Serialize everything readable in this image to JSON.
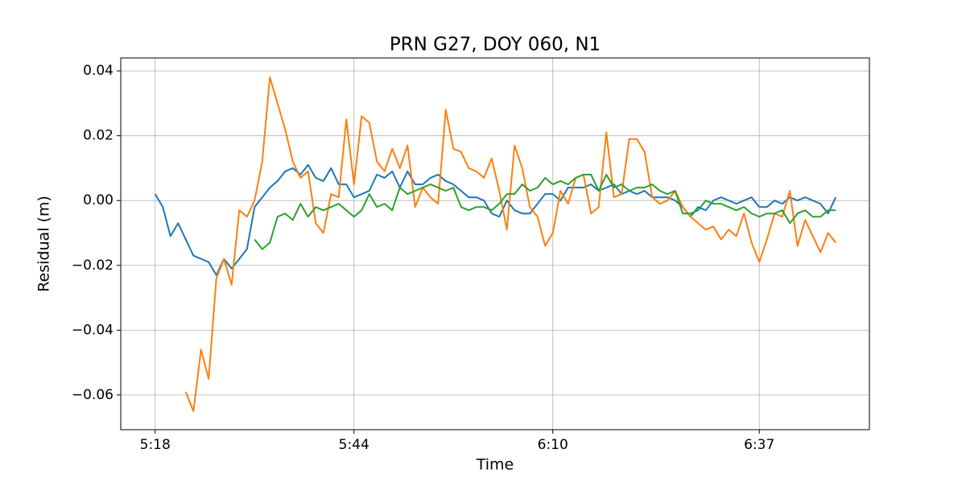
{
  "chart_data": {
    "type": "line",
    "title": "PRN G27, DOY 060, N1",
    "x_label": "Time",
    "y_label": "Residual (m)",
    "x": [
      318,
      319,
      320,
      321,
      322,
      323,
      324,
      325,
      326,
      327,
      328,
      329,
      330,
      331,
      332,
      333,
      334,
      335,
      336,
      337,
      338,
      339,
      340,
      341,
      342,
      343,
      344,
      345,
      346,
      347,
      348,
      349,
      350,
      351,
      352,
      353,
      354,
      355,
      356,
      357,
      358,
      359,
      360,
      361,
      362,
      363,
      364,
      365,
      366,
      367,
      368,
      369,
      370,
      371,
      372,
      373,
      374,
      375,
      376,
      377,
      378,
      379,
      380,
      381,
      382,
      383,
      384,
      385,
      386,
      387,
      388,
      389,
      390,
      391,
      392,
      393,
      394,
      395,
      396,
      397,
      398,
      399,
      400,
      401,
      402,
      403,
      404,
      405,
      406,
      407
    ],
    "series": [
      {
        "color": "#1f77b4",
        "values": [
          0.002,
          -0.002,
          -0.011,
          -0.007,
          -0.012,
          -0.017,
          -0.018,
          -0.019,
          -0.023,
          -0.018,
          -0.021,
          -0.018,
          -0.015,
          -0.002,
          0.001,
          0.004,
          0.006,
          0.009,
          0.01,
          0.008,
          0.011,
          0.007,
          0.006,
          0.01,
          0.005,
          0.005,
          0.001,
          0.002,
          0.003,
          0.008,
          0.007,
          0.009,
          0.004,
          0.009,
          0.005,
          0.005,
          0.007,
          0.008,
          0.006,
          0.005,
          0.003,
          0.001,
          0.001,
          0.0,
          -0.004,
          -0.005,
          0.0,
          -0.003,
          -0.004,
          -0.004,
          -0.001,
          0.002,
          0.002,
          0.0,
          0.004,
          0.004,
          0.004,
          0.005,
          0.003,
          0.004,
          0.005,
          0.002,
          0.003,
          0.002,
          0.003,
          0.001,
          0.001,
          0.001,
          0.0,
          -0.002,
          -0.005,
          -0.002,
          -0.003,
          0.0,
          0.001,
          0.0,
          -0.001,
          0.0,
          0.001,
          -0.002,
          -0.002,
          0.0,
          -0.001,
          0.001,
          0.0,
          0.001,
          0.0,
          -0.001,
          -0.004,
          0.001
        ]
      },
      {
        "color": "#ff7f0e",
        "values": [
          null,
          null,
          null,
          null,
          -0.059,
          -0.065,
          -0.046,
          -0.055,
          -0.024,
          -0.018,
          -0.026,
          -0.003,
          -0.005,
          0.0,
          0.012,
          0.038,
          0.03,
          0.022,
          0.012,
          0.007,
          0.009,
          -0.007,
          -0.01,
          0.002,
          0.001,
          0.025,
          0.005,
          0.026,
          0.024,
          0.012,
          0.009,
          0.016,
          0.01,
          0.017,
          -0.002,
          0.004,
          0.001,
          -0.001,
          0.028,
          0.016,
          0.015,
          0.01,
          0.009,
          0.007,
          0.013,
          0.003,
          -0.009,
          0.017,
          0.01,
          -0.002,
          -0.005,
          -0.014,
          -0.01,
          0.003,
          -0.001,
          0.007,
          0.008,
          -0.004,
          -0.002,
          0.021,
          0.001,
          0.002,
          0.019,
          0.019,
          0.015,
          0.001,
          -0.001,
          0.0,
          0.003,
          -0.002,
          -0.005,
          -0.007,
          -0.009,
          -0.008,
          -0.012,
          -0.009,
          -0.011,
          -0.004,
          -0.013,
          -0.019,
          -0.012,
          -0.004,
          -0.005,
          0.003,
          -0.014,
          -0.006,
          -0.011,
          -0.016,
          -0.01,
          -0.013
        ]
      },
      {
        "color": "#2ca02c",
        "values": [
          null,
          null,
          null,
          null,
          null,
          null,
          null,
          null,
          null,
          null,
          null,
          null,
          null,
          -0.012,
          -0.015,
          -0.013,
          -0.005,
          -0.004,
          -0.006,
          -0.001,
          -0.005,
          -0.002,
          -0.003,
          -0.002,
          -0.001,
          -0.003,
          -0.005,
          -0.003,
          0.002,
          -0.002,
          -0.001,
          -0.003,
          0.004,
          0.002,
          0.003,
          0.004,
          0.005,
          0.004,
          0.003,
          0.004,
          -0.002,
          -0.003,
          -0.002,
          -0.002,
          -0.003,
          -0.001,
          0.002,
          0.002,
          0.005,
          0.003,
          0.004,
          0.007,
          0.005,
          0.006,
          0.005,
          0.007,
          0.008,
          0.008,
          0.003,
          0.008,
          0.004,
          0.005,
          0.003,
          0.004,
          0.004,
          0.005,
          0.003,
          0.002,
          0.003,
          -0.004,
          -0.004,
          -0.003,
          0.0,
          -0.001,
          -0.001,
          -0.002,
          -0.003,
          -0.002,
          -0.004,
          -0.005,
          -0.004,
          -0.004,
          -0.003,
          -0.007,
          -0.004,
          -0.003,
          -0.005,
          -0.005,
          -0.003,
          -0.003
        ]
      }
    ],
    "xlim": [
      313.5,
      411.4
    ],
    "xticks": [
      {
        "value": 318,
        "label": "5:18"
      },
      {
        "value": 344,
        "label": "5:44"
      },
      {
        "value": 370,
        "label": "6:10"
      },
      {
        "value": 397,
        "label": "6:37"
      }
    ],
    "ylim": [
      -0.0707,
      0.044
    ],
    "yticks": [
      0.04,
      0.02,
      {
        "value": 0,
        "label": "0.00"
      },
      {
        "value": -0.02,
        "label": "−0.02"
      },
      {
        "value": -0.04,
        "label": "−0.04"
      },
      {
        "value": -0.06,
        "label": "−0.06"
      }
    ],
    "grid": true
  }
}
